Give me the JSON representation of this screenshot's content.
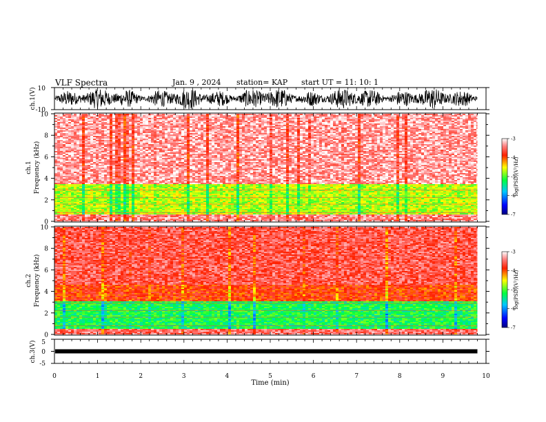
{
  "header": {
    "title": "VLF Spectra",
    "date": "Jan. 9 , 2024",
    "station": "station= KAP",
    "start": "start UT = 11: 10: 1"
  },
  "chart_data": [
    {
      "type": "line",
      "name": "ch1-waveform",
      "ylabel": "ch.1(V)",
      "ylim": [
        -10,
        10
      ],
      "y_ticks": [
        "10",
        "-10"
      ],
      "xlim": [
        0,
        10
      ],
      "data_extent_min": [
        0,
        9.8
      ],
      "description_values": "dense oscillating signal between about -9 and 8 V"
    },
    {
      "type": "heatmap",
      "name": "ch1-spectrogram",
      "ylabel": "ch.1 Frequency (kHz)",
      "ylim": [
        0,
        10
      ],
      "y_ticks": [
        "0",
        "2",
        "4",
        "6",
        "8",
        "10"
      ],
      "xlim": [
        0,
        10
      ],
      "colorbar": {
        "label": "log(PSD)(V²/Hz)",
        "range": [
          -7,
          -3
        ],
        "ticks": [
          "-3",
          "-4",
          "-5",
          "-6",
          "-7"
        ]
      },
      "bands_khz": [
        {
          "from": 0.0,
          "to": 0.6,
          "level": -3.4
        },
        {
          "from": 0.6,
          "to": 3.4,
          "level": -4.7
        },
        {
          "from": 3.4,
          "to": 10.0,
          "level": -3.3
        }
      ]
    },
    {
      "type": "heatmap",
      "name": "ch2-spectrogram",
      "ylabel": "ch.2 Frequency (kHz)",
      "ylim": [
        0,
        10
      ],
      "y_ticks": [
        "0",
        "2",
        "4",
        "6",
        "8",
        "10"
      ],
      "xlim": [
        0,
        10
      ],
      "colorbar": {
        "label": "log(PSD)(V²/Hz)",
        "range": [
          -7,
          -3
        ],
        "ticks": [
          "-3",
          "-4",
          "-5",
          "-6",
          "-7"
        ]
      },
      "bands_khz": [
        {
          "from": 0.0,
          "to": 0.5,
          "level": -3.5
        },
        {
          "from": 0.5,
          "to": 3.1,
          "level": -5.2
        },
        {
          "from": 3.1,
          "to": 4.6,
          "level": -3.9
        },
        {
          "from": 4.6,
          "to": 10.0,
          "level": -3.6
        }
      ]
    },
    {
      "type": "line",
      "name": "ch3-waveform",
      "ylabel": "ch.3(V)",
      "ylim": [
        -5,
        5
      ],
      "y_ticks": [
        "5",
        "0",
        "-5"
      ],
      "xlim": [
        0,
        10
      ],
      "data_extent_min": [
        0,
        9.8
      ],
      "level_v": 0
    }
  ],
  "xaxis": {
    "label": "Time (min)",
    "ticks": [
      "0",
      "1",
      "2",
      "3",
      "4",
      "5",
      "6",
      "7",
      "8",
      "9",
      "10"
    ]
  }
}
